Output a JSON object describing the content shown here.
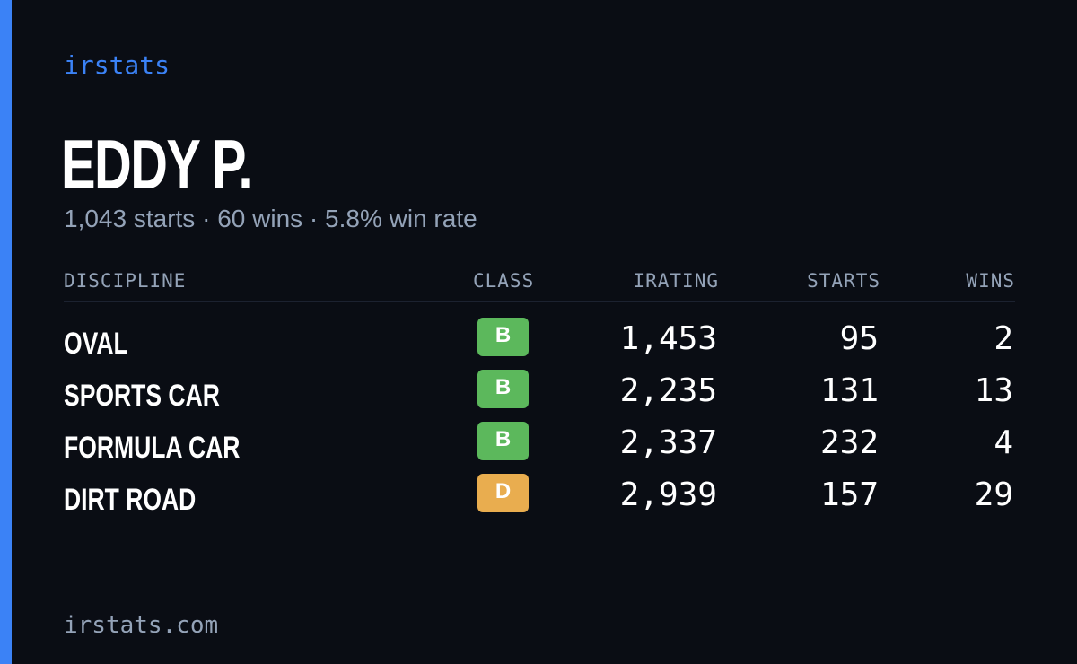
{
  "brand": "irstats",
  "player": {
    "name": "EDDY P.",
    "starts": "1,043 starts",
    "wins": "60 wins",
    "win_rate": "5.8% win rate",
    "separator": "·"
  },
  "table": {
    "headers": {
      "discipline": "DISCIPLINE",
      "class": "CLASS",
      "irating": "IRATING",
      "starts": "STARTS",
      "wins": "WINS"
    },
    "rows": [
      {
        "discipline": "OVAL",
        "class": "B",
        "class_color": "#5cb85c",
        "irating": "1,453",
        "starts": "95",
        "wins": "2"
      },
      {
        "discipline": "SPORTS CAR",
        "class": "B",
        "class_color": "#5cb85c",
        "irating": "2,235",
        "starts": "131",
        "wins": "13"
      },
      {
        "discipline": "FORMULA CAR",
        "class": "B",
        "class_color": "#5cb85c",
        "irating": "2,337",
        "starts": "232",
        "wins": "4"
      },
      {
        "discipline": "DIRT ROAD",
        "class": "D",
        "class_color": "#e9ad4f",
        "irating": "2,939",
        "starts": "157",
        "wins": "29"
      }
    ]
  },
  "footer": {
    "domain": "irstats.com"
  },
  "colors": {
    "background": "#0a0d14",
    "accent": "#3b82f6",
    "muted_text": "#94a3b8",
    "class_b": "#5cb85c",
    "class_d": "#e9ad4f"
  }
}
